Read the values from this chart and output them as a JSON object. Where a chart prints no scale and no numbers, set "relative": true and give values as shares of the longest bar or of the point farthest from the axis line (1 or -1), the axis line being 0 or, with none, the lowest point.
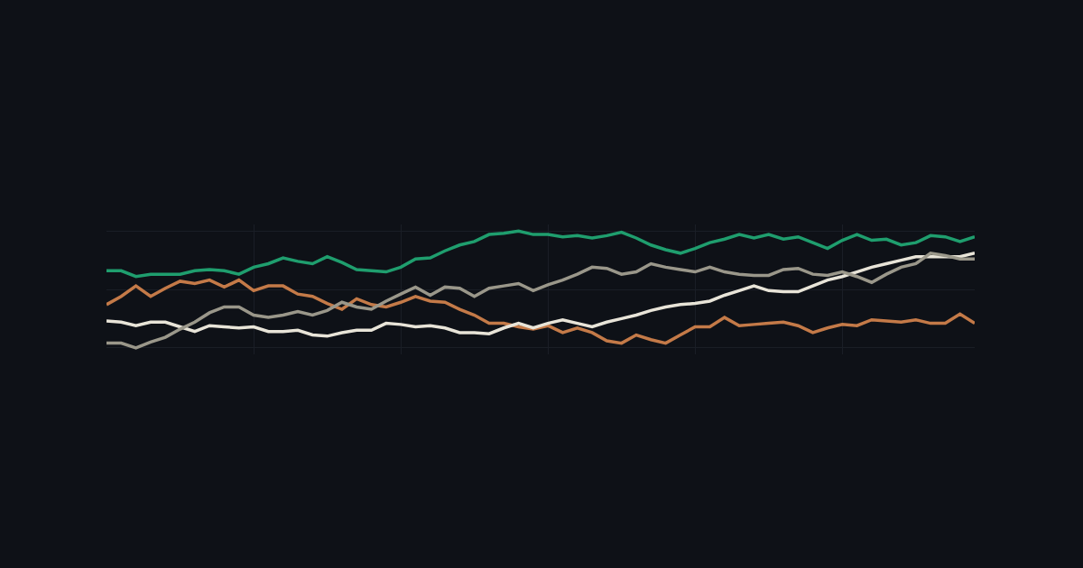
{
  "chart_data": {
    "type": "line",
    "relative": true,
    "grid": true,
    "line_style": "solid",
    "marker": "none",
    "categories": [
      null,
      null,
      null,
      null,
      null,
      null,
      null,
      null,
      null,
      null,
      null,
      null,
      null,
      null,
      null,
      null,
      null,
      null,
      null,
      null,
      null,
      null,
      null,
      null,
      null,
      null,
      null,
      null,
      null,
      null,
      null,
      null,
      null,
      null,
      null,
      null,
      null,
      null,
      null,
      null,
      null,
      null,
      null,
      null,
      null,
      null,
      null,
      null,
      null,
      null,
      null,
      null,
      null,
      null,
      null,
      null,
      null,
      null,
      null,
      null
    ],
    "series": [
      {
        "color": "#1f9e6e",
        "values": [
          0.66,
          0.66,
          0.61,
          0.63,
          0.63,
          0.63,
          0.66,
          0.67,
          0.66,
          0.63,
          0.69,
          0.72,
          0.77,
          0.74,
          0.72,
          0.78,
          0.73,
          0.67,
          0.66,
          0.65,
          0.69,
          0.76,
          0.77,
          0.83,
          0.88,
          0.91,
          0.97,
          0.98,
          1,
          0.97,
          0.97,
          0.95,
          0.96,
          0.94,
          0.96,
          0.99,
          0.94,
          0.88,
          0.84,
          0.81,
          0.85,
          0.9,
          0.93,
          0.97,
          0.94,
          0.97,
          0.93,
          0.95,
          0.9,
          0.85,
          0.92,
          0.97,
          0.92,
          0.93,
          0.88,
          0.9,
          0.96,
          0.95,
          0.91,
          0.95
        ]
      },
      {
        "color": "#c47a48",
        "values": [
          0.37,
          0.44,
          0.53,
          0.44,
          0.51,
          0.57,
          0.55,
          0.58,
          0.52,
          0.58,
          0.49,
          0.53,
          0.53,
          0.46,
          0.44,
          0.38,
          0.33,
          0.42,
          0.37,
          0.35,
          0.39,
          0.44,
          0.4,
          0.39,
          0.33,
          0.28,
          0.21,
          0.21,
          0.18,
          0.16,
          0.19,
          0.13,
          0.17,
          0.13,
          0.06,
          0.04,
          0.11,
          0.07,
          0.04,
          0.11,
          0.18,
          0.18,
          0.26,
          0.19,
          0.2,
          0.21,
          0.22,
          0.19,
          0.13,
          0.17,
          0.2,
          0.19,
          0.24,
          0.23,
          0.22,
          0.24,
          0.21,
          0.21,
          0.29,
          0.21
        ]
      },
      {
        "color": "#e8e4d8",
        "values": [
          0.23,
          0.22,
          0.19,
          0.22,
          0.22,
          0.18,
          0.14,
          0.19,
          0.18,
          0.17,
          0.18,
          0.14,
          0.14,
          0.15,
          0.11,
          0.1,
          0.13,
          0.15,
          0.15,
          0.21,
          0.2,
          0.18,
          0.19,
          0.17,
          0.13,
          0.13,
          0.12,
          0.17,
          0.21,
          0.17,
          0.21,
          0.24,
          0.21,
          0.18,
          0.22,
          0.25,
          0.28,
          0.32,
          0.35,
          0.37,
          0.38,
          0.4,
          0.45,
          0.49,
          0.53,
          0.49,
          0.48,
          0.48,
          0.53,
          0.58,
          0.61,
          0.65,
          0.69,
          0.72,
          0.75,
          0.78,
          0.78,
          0.78,
          0.78,
          0.81
        ]
      },
      {
        "color": "#9a978a",
        "values": [
          0.04,
          0.04,
          0,
          0.05,
          0.09,
          0.16,
          0.22,
          0.3,
          0.35,
          0.35,
          0.28,
          0.26,
          0.28,
          0.31,
          0.28,
          0.32,
          0.39,
          0.35,
          0.33,
          0.4,
          0.46,
          0.52,
          0.45,
          0.52,
          0.51,
          0.44,
          0.51,
          0.53,
          0.55,
          0.49,
          0.54,
          0.58,
          0.63,
          0.69,
          0.68,
          0.63,
          0.65,
          0.72,
          0.69,
          0.67,
          0.65,
          0.69,
          0.65,
          0.63,
          0.62,
          0.62,
          0.67,
          0.68,
          0.63,
          0.62,
          0.65,
          0.61,
          0.56,
          0.63,
          0.69,
          0.72,
          0.81,
          0.79,
          0.76,
          0.76
        ]
      }
    ]
  }
}
